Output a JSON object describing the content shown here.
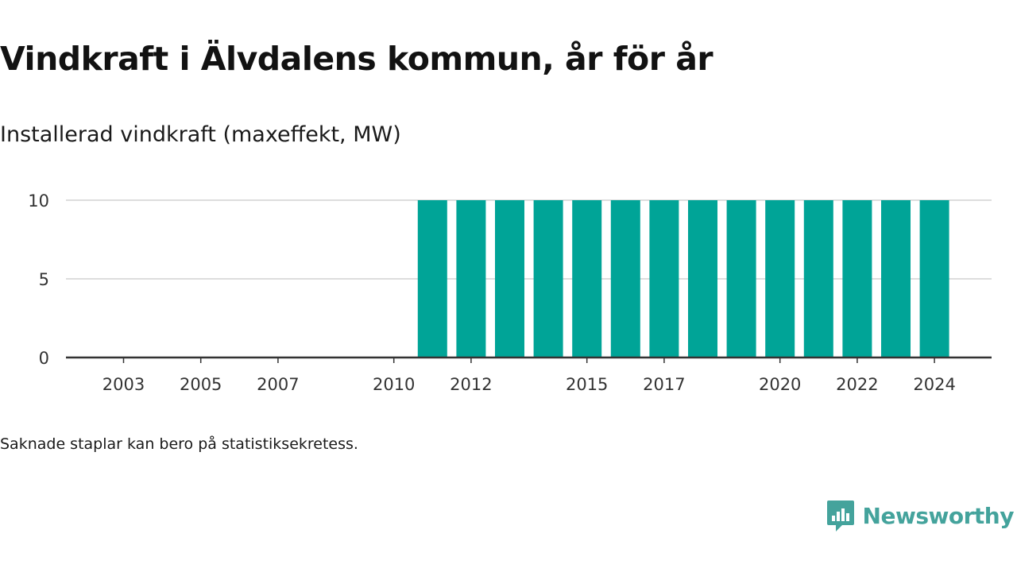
{
  "title": "Vindkraft i Älvdalens kommun, år för år",
  "subtitle": "Installerad vindkraft (maxeffekt, MW)",
  "footnote": "Saknade staplar kan bero på statistiksekretess.",
  "logo": {
    "text": "Newsworthy",
    "icon": "newsworthy-chat-bars-icon",
    "color": "#44a39c"
  },
  "colors": {
    "bar": "#00a497",
    "grid": "#dddddd",
    "axis": "#333333"
  },
  "chart_data": {
    "type": "bar",
    "categories": [
      "2003",
      "2004",
      "2005",
      "2006",
      "2007",
      "2008",
      "2009",
      "2010",
      "2011",
      "2012",
      "2013",
      "2014",
      "2015",
      "2016",
      "2017",
      "2018",
      "2019",
      "2020",
      "2021",
      "2022",
      "2023",
      "2024"
    ],
    "values": [
      0,
      0,
      0,
      0,
      0,
      0,
      0,
      0,
      10,
      10,
      10,
      10,
      10,
      10,
      10,
      10,
      10,
      10,
      10,
      10,
      10,
      10
    ],
    "x_tick_labels": [
      "2003",
      "2005",
      "2007",
      "2010",
      "2012",
      "2015",
      "2017",
      "2020",
      "2022",
      "2024"
    ],
    "y_ticks": [
      0,
      5,
      10
    ],
    "ylim": [
      0,
      10
    ],
    "xlabel": "",
    "ylabel": "",
    "grid": true,
    "legend": "none"
  }
}
